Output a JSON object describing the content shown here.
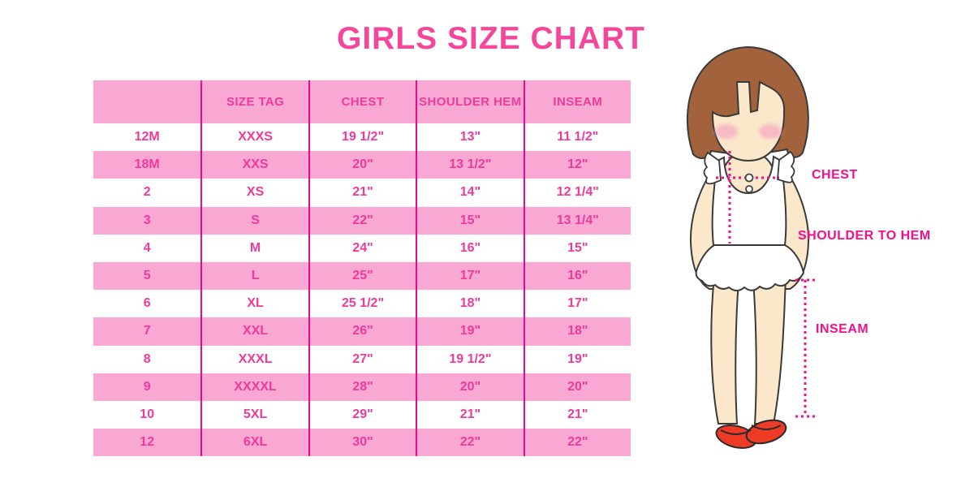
{
  "title": "GIRLS SIZE CHART",
  "chart_data": {
    "type": "table",
    "columns": [
      "",
      "SIZE TAG",
      "CHEST",
      "SHOULDER HEM",
      "INSEAM"
    ],
    "rows": [
      [
        "12M",
        "XXXS",
        "19 1/2\"",
        "13\"",
        "11 1/2\""
      ],
      [
        "18M",
        "XXS",
        "20\"",
        "13 1/2\"",
        "12\""
      ],
      [
        "2",
        "XS",
        "21\"",
        "14\"",
        "12 1/4\""
      ],
      [
        "3",
        "S",
        "22\"",
        "15\"",
        "13 1/4\""
      ],
      [
        "4",
        "M",
        "24\"",
        "16\"",
        "15\""
      ],
      [
        "5",
        "L",
        "25\"",
        "17\"",
        "16\""
      ],
      [
        "6",
        "XL",
        "25 1/2\"",
        "18\"",
        "17\""
      ],
      [
        "7",
        "XXL",
        "26\"",
        "19\"",
        "18\""
      ],
      [
        "8",
        "XXXL",
        "27\"",
        "19 1/2\"",
        "19\""
      ],
      [
        "9",
        "XXXXL",
        "28\"",
        "20\"",
        "20\""
      ],
      [
        "10",
        "5XL",
        "29\"",
        "21\"",
        "21\""
      ],
      [
        "12",
        "6XL",
        "30\"",
        "22\"",
        "22\""
      ]
    ],
    "layout_hints": {
      "striped_rows": "white / light-pink alternating, header light-pink",
      "column_dividers": "magenta vertical lines"
    }
  },
  "figure": {
    "chest_label": "CHEST",
    "shoulder_to_hem_label": "SHOULDER TO HEM",
    "inseam_label": "INSEAM"
  },
  "colors": {
    "light_pink": "#F9A8D3",
    "table_text_pink": "#EF3A9C",
    "divider_magenta": "#E70A8C",
    "title_pink": "#F4479C",
    "label_pink": "#F2108E",
    "hair_brown": "#A2633C",
    "skin": "#FBE8CA",
    "blush": "#F5AEC5",
    "shoe_red": "#EE3B25"
  }
}
